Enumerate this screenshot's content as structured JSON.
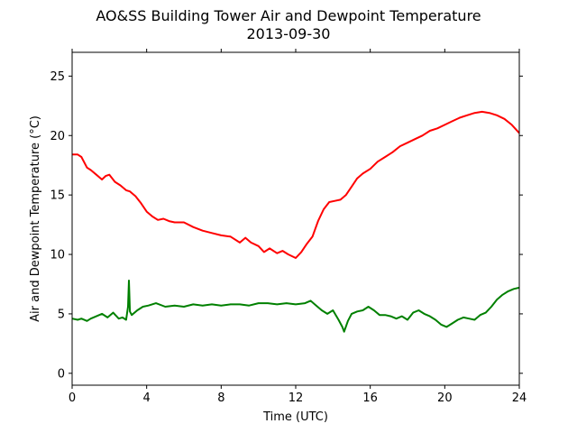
{
  "chart_data": {
    "type": "line",
    "title": "AO&SS Building Tower Air and Dewpoint Temperature",
    "subtitle": "2013-09-30",
    "xlabel": "Time (UTC)",
    "ylabel": "Air and Dewpoint Temperature (°C)",
    "xlim": [
      0,
      24
    ],
    "ylim": [
      -1,
      27
    ],
    "x_ticks": [
      0,
      4,
      8,
      12,
      16,
      20,
      24
    ],
    "y_ticks": [
      0,
      5,
      10,
      15,
      20,
      25
    ],
    "grid": false,
    "series": [
      {
        "color": "#ff0000",
        "x": [
          0,
          0.3,
          0.5,
          0.8,
          1.0,
          1.3,
          1.6,
          1.8,
          2.0,
          2.3,
          2.6,
          2.9,
          3.1,
          3.4,
          3.7,
          4.0,
          4.3,
          4.6,
          4.9,
          5.2,
          5.5,
          6.0,
          6.5,
          7.0,
          7.5,
          8.0,
          8.5,
          9.0,
          9.3,
          9.6,
          10.0,
          10.3,
          10.6,
          11.0,
          11.3,
          11.6,
          12.0,
          12.3,
          12.6,
          12.9,
          13.2,
          13.5,
          13.8,
          14.1,
          14.4,
          14.7,
          15.0,
          15.3,
          15.6,
          16.0,
          16.4,
          16.8,
          17.2,
          17.6,
          18.0,
          18.4,
          18.8,
          19.2,
          19.6,
          20.0,
          20.4,
          20.8,
          21.2,
          21.6,
          22.0,
          22.4,
          22.8,
          23.2,
          23.6,
          24.0
        ],
        "y": [
          18.4,
          18.4,
          18.2,
          17.3,
          17.1,
          16.7,
          16.3,
          16.6,
          16.7,
          16.1,
          15.8,
          15.4,
          15.3,
          14.9,
          14.3,
          13.6,
          13.2,
          12.9,
          13.0,
          12.8,
          12.7,
          12.7,
          12.3,
          12.0,
          11.8,
          11.6,
          11.5,
          11.0,
          11.4,
          11.0,
          10.7,
          10.2,
          10.5,
          10.1,
          10.3,
          10.0,
          9.7,
          10.2,
          10.9,
          11.5,
          12.8,
          13.8,
          14.4,
          14.5,
          14.6,
          15.0,
          15.7,
          16.4,
          16.8,
          17.2,
          17.8,
          18.2,
          18.6,
          19.1,
          19.4,
          19.7,
          20.0,
          20.4,
          20.6,
          20.9,
          21.2,
          21.5,
          21.7,
          21.9,
          22.0,
          21.9,
          21.7,
          21.4,
          20.9,
          20.2
        ]
      },
      {
        "color": "#008000",
        "x": [
          0,
          0.3,
          0.5,
          0.8,
          1.0,
          1.3,
          1.6,
          1.9,
          2.2,
          2.5,
          2.7,
          2.9,
          3.0,
          3.05,
          3.1,
          3.2,
          3.5,
          3.8,
          4.1,
          4.5,
          5.0,
          5.5,
          6.0,
          6.5,
          7.0,
          7.5,
          8.0,
          8.5,
          9.0,
          9.5,
          10.0,
          10.5,
          11.0,
          11.5,
          12.0,
          12.5,
          12.8,
          13.1,
          13.4,
          13.7,
          14.0,
          14.3,
          14.5,
          14.6,
          14.8,
          15.0,
          15.3,
          15.6,
          15.9,
          16.2,
          16.5,
          16.8,
          17.1,
          17.4,
          17.7,
          18.0,
          18.3,
          18.6,
          18.9,
          19.2,
          19.5,
          19.8,
          20.1,
          20.4,
          20.7,
          21.0,
          21.3,
          21.6,
          21.9,
          22.2,
          22.5,
          22.8,
          23.1,
          23.4,
          23.7,
          24.0
        ],
        "y": [
          4.6,
          4.5,
          4.6,
          4.4,
          4.6,
          4.8,
          5.0,
          4.7,
          5.1,
          4.6,
          4.7,
          4.5,
          5.6,
          7.8,
          5.2,
          4.9,
          5.3,
          5.6,
          5.7,
          5.9,
          5.6,
          5.7,
          5.6,
          5.8,
          5.7,
          5.8,
          5.7,
          5.8,
          5.8,
          5.7,
          5.9,
          5.9,
          5.8,
          5.9,
          5.8,
          5.9,
          6.1,
          5.7,
          5.3,
          5.0,
          5.3,
          4.5,
          3.9,
          3.5,
          4.4,
          5.0,
          5.2,
          5.3,
          5.6,
          5.3,
          4.9,
          4.9,
          4.8,
          4.6,
          4.8,
          4.5,
          5.1,
          5.3,
          5.0,
          4.8,
          4.5,
          4.1,
          3.9,
          4.2,
          4.5,
          4.7,
          4.6,
          4.5,
          4.9,
          5.1,
          5.6,
          6.2,
          6.6,
          6.9,
          7.1,
          7.2
        ]
      }
    ]
  }
}
